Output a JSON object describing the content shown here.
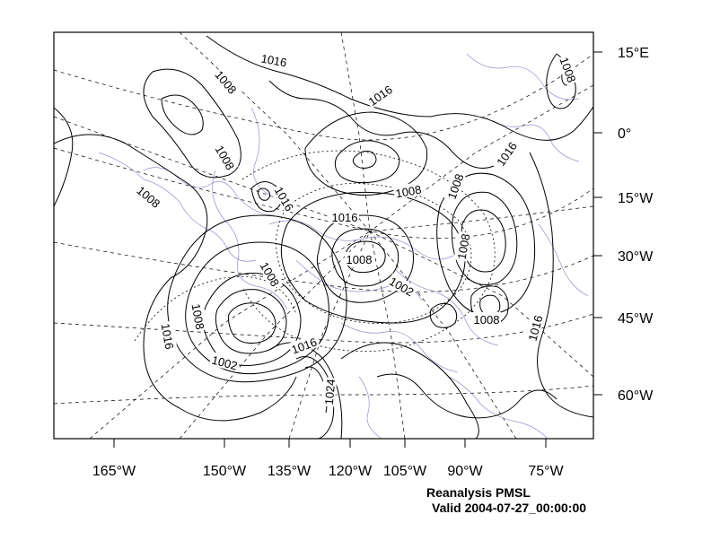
{
  "map": {
    "title": "Reanalysis PMSL",
    "valid": "Valid 2004-07-27_00:00:00",
    "colors": {
      "contour": "#000000",
      "coastline": "#a08cc8",
      "background": "#ffffff"
    },
    "bottom_axis_labels": [
      "165°W",
      "150°W",
      "135°W",
      "120°W",
      "105°W",
      "90°W",
      "75°W"
    ],
    "right_axis_labels": [
      "15°E",
      "0°",
      "15°W",
      "30°W",
      "45°W",
      "60°W"
    ],
    "contour_labels": [
      "1016",
      "1008",
      "1016",
      "1008",
      "1008",
      "1016",
      "1008",
      "1016",
      "1008",
      "1008",
      "1016",
      "1008",
      "1002",
      "1008",
      "1016",
      "1008",
      "1002",
      "1016",
      "1008",
      "1016",
      "1024",
      "1008"
    ]
  }
}
